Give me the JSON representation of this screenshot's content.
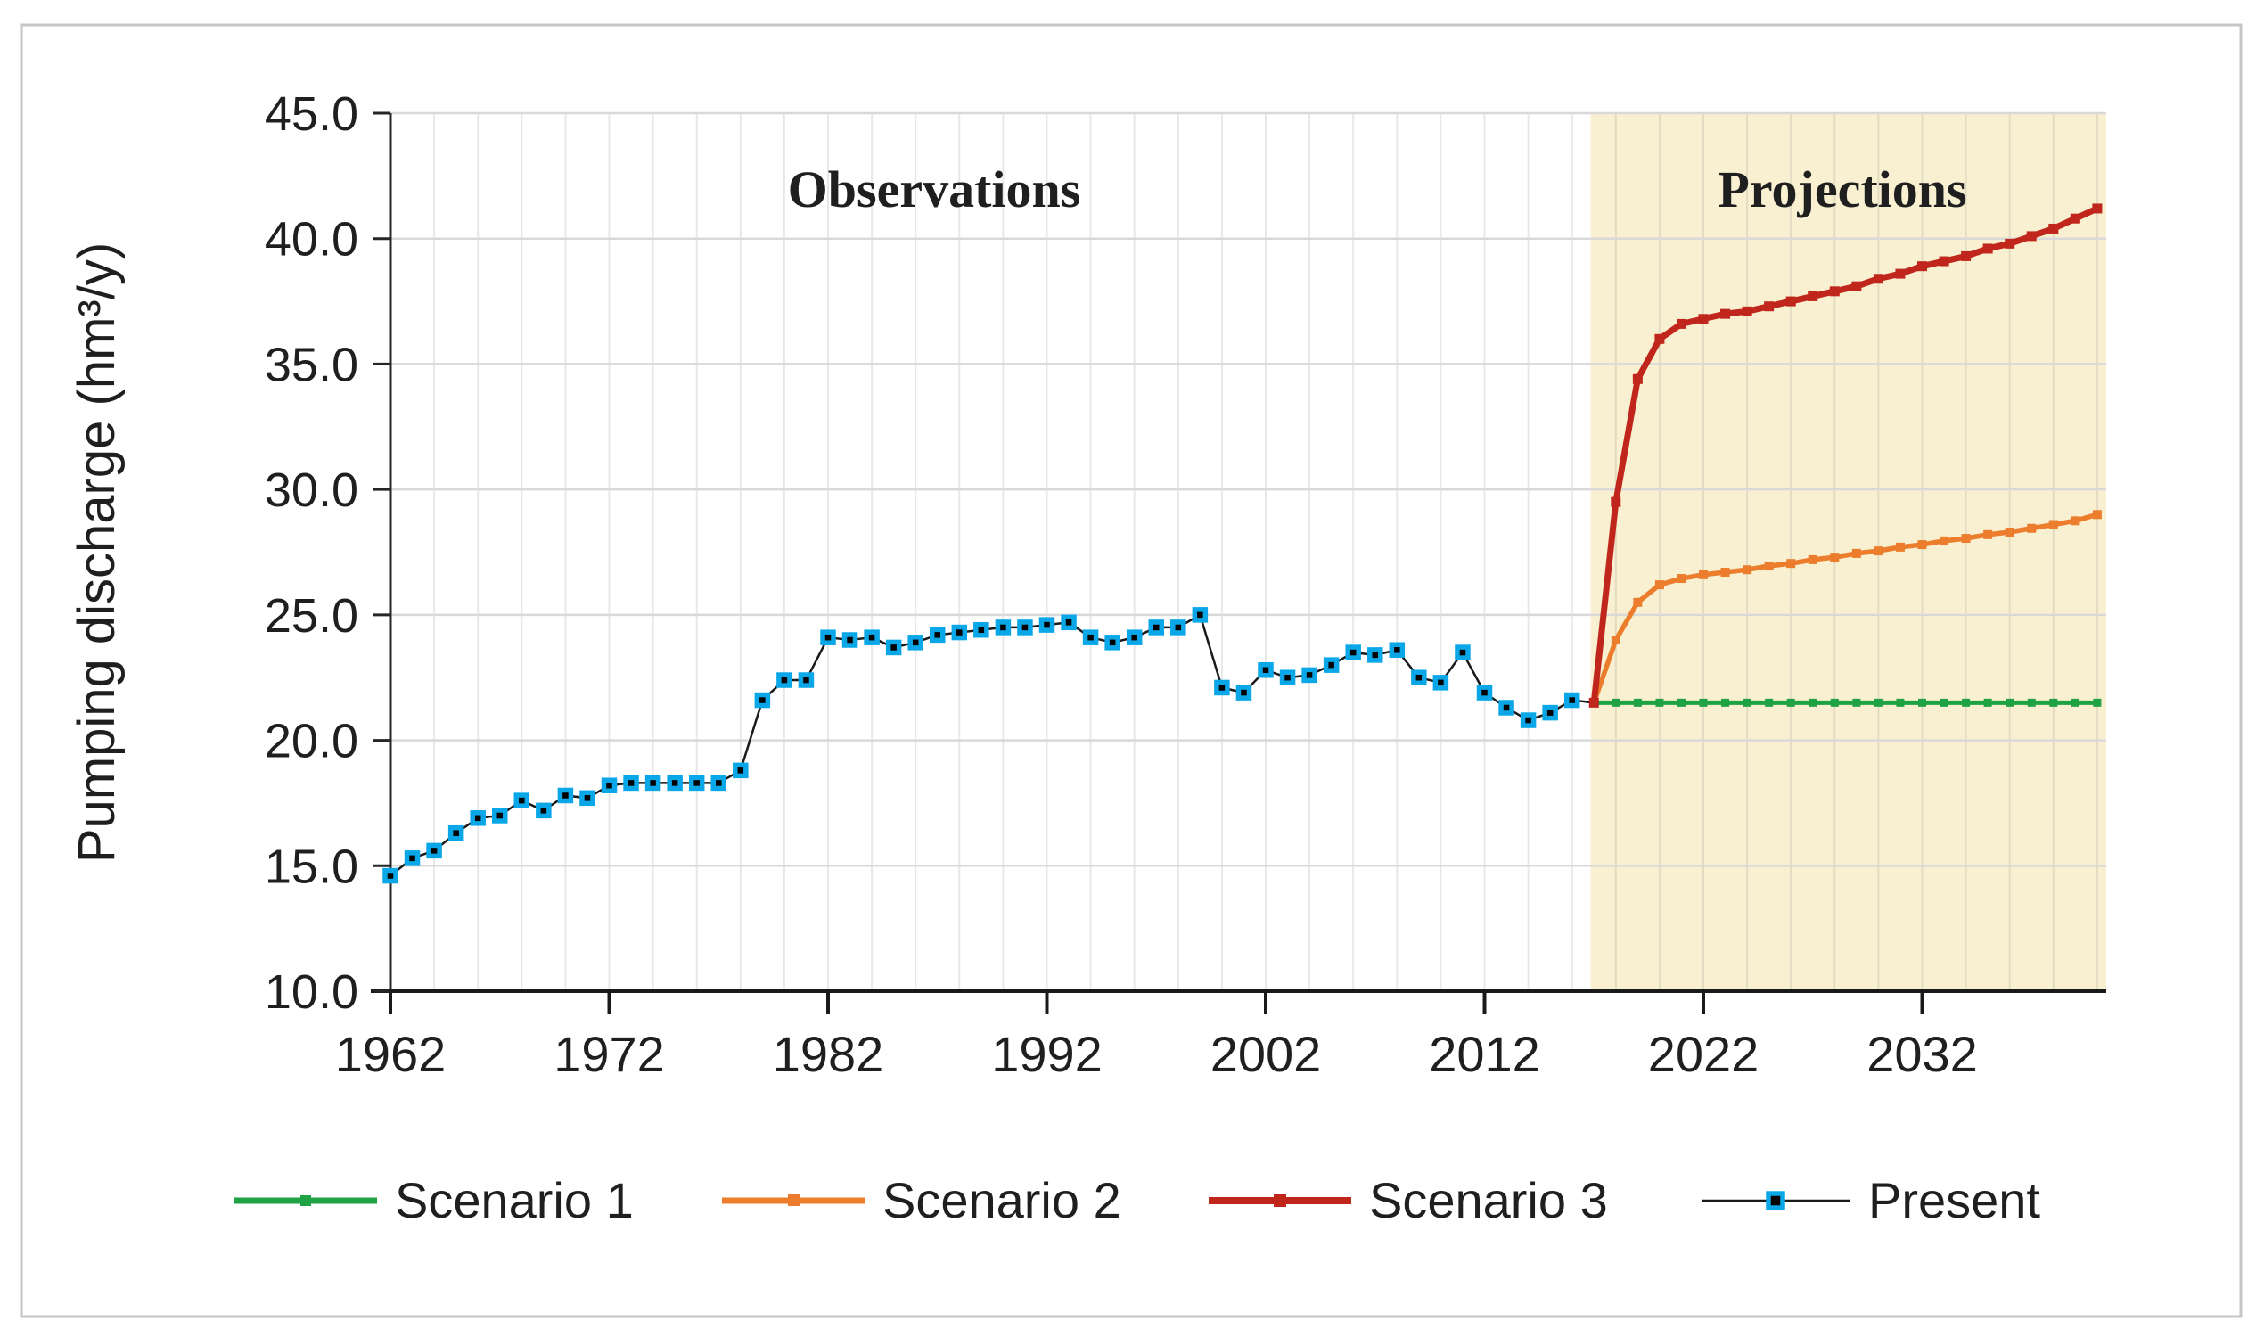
{
  "chart_data": {
    "type": "line",
    "title": "",
    "xlabel": "",
    "ylabel": "Pumping discharge (hm³/y)",
    "ylim": [
      10,
      45
    ],
    "xlim": [
      1962,
      2040
    ],
    "y_ticks": [
      "45.0",
      "40.0",
      "35.0",
      "30.0",
      "25.0",
      "20.0",
      "15.0",
      "10.0"
    ],
    "x_ticks": [
      "1962",
      "1972",
      "1982",
      "1992",
      "2002",
      "2012",
      "2022",
      "2032"
    ],
    "grid": {
      "horizontal_interval": 5,
      "vertical_interval_years": 2,
      "grid_on": true
    },
    "annotations": [
      {
        "text": "Observations",
        "region": "historical"
      },
      {
        "text": "Projections",
        "region": "forecast"
      }
    ],
    "projection_band": {
      "start_year": 2017,
      "end_year": 2040,
      "color": "#f8f0d1"
    },
    "legend": {
      "position": "bottom",
      "items": [
        "Scenario 1",
        "Scenario 2",
        "Scenario 3",
        "Present"
      ]
    },
    "series": [
      {
        "name": "Scenario 1",
        "color": "#1fa244",
        "marker": "square",
        "start_year": 2017,
        "values": [
          21.5,
          21.5,
          21.5,
          21.5,
          21.5,
          21.5,
          21.5,
          21.5,
          21.5,
          21.5,
          21.5,
          21.5,
          21.5,
          21.5,
          21.5,
          21.5,
          21.5,
          21.5,
          21.5,
          21.5,
          21.5,
          21.5,
          21.5,
          21.5
        ]
      },
      {
        "name": "Scenario 2",
        "color": "#ec7d2d",
        "marker": "square",
        "start_year": 2017,
        "values": [
          21.5,
          24.0,
          25.5,
          26.2,
          26.45,
          26.6,
          26.7,
          26.8,
          26.95,
          27.05,
          27.2,
          27.3,
          27.45,
          27.55,
          27.7,
          27.8,
          27.95,
          28.05,
          28.2,
          28.3,
          28.45,
          28.6,
          28.75,
          29.0
        ]
      },
      {
        "name": "Scenario 3",
        "color": "#c0261b",
        "marker": "square",
        "start_year": 2017,
        "values": [
          21.5,
          29.5,
          34.4,
          36.0,
          36.6,
          36.8,
          37.0,
          37.1,
          37.3,
          37.5,
          37.7,
          37.9,
          38.1,
          38.4,
          38.6,
          38.9,
          39.1,
          39.3,
          39.6,
          39.8,
          40.1,
          40.4,
          40.8,
          41.2
        ]
      },
      {
        "name": "Present",
        "color": "#1a1a1a",
        "marker": "square-outlined",
        "marker_fill": "#000000",
        "marker_stroke": "#0aa7e8",
        "marker_skip_last": true,
        "start_year": 1962,
        "values": [
          14.6,
          15.3,
          15.6,
          16.3,
          16.9,
          17.0,
          17.6,
          17.2,
          17.8,
          17.7,
          18.2,
          18.3,
          18.3,
          18.3,
          18.3,
          18.3,
          18.8,
          21.6,
          22.4,
          22.4,
          24.1,
          24.0,
          24.1,
          23.7,
          23.9,
          24.2,
          24.3,
          24.4,
          24.5,
          24.5,
          24.6,
          24.7,
          24.1,
          23.9,
          24.1,
          24.5,
          24.5,
          25.0,
          22.1,
          21.9,
          22.8,
          22.5,
          22.6,
          23.0,
          23.5,
          23.4,
          23.6,
          22.5,
          22.3,
          23.5,
          21.9,
          21.3,
          20.8,
          21.1,
          21.6,
          21.5
        ]
      }
    ]
  }
}
